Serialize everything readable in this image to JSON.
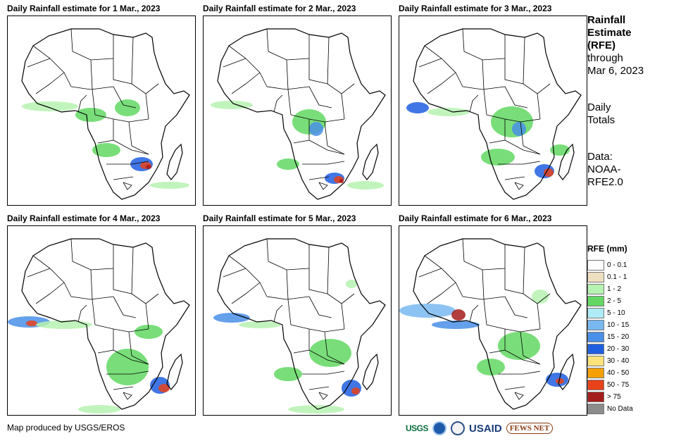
{
  "panels": [
    {
      "title": "Daily Rainfall estimate for 1 Mar., 2023"
    },
    {
      "title": "Daily Rainfall estimate for 2 Mar., 2023"
    },
    {
      "title": "Daily Rainfall estimate for 3 Mar., 2023"
    },
    {
      "title": "Daily Rainfall estimate for 4 Mar., 2023"
    },
    {
      "title": "Daily Rainfall estimate for 5 Mar., 2023"
    },
    {
      "title": "Daily Rainfall estimate for 6 Mar., 2023"
    }
  ],
  "side": {
    "title_line1": "Rainfall",
    "title_line2": "Estimate",
    "title_line3": "(RFE)",
    "through": "through",
    "date": "Mar 6, 2023",
    "totals_line1": "Daily",
    "totals_line2": "Totals",
    "data_line1": "Data:",
    "data_line2": "NOAA-",
    "data_line3": "RFE2.0"
  },
  "legend": {
    "title": "RFE (mm)",
    "items": [
      {
        "label": "0 - 0.1",
        "color": "#ffffff"
      },
      {
        "label": "0.1 - 1",
        "color": "#eedfc0"
      },
      {
        "label": "1 - 2",
        "color": "#b6f2b0"
      },
      {
        "label": "2 - 5",
        "color": "#62d862"
      },
      {
        "label": "5 - 10",
        "color": "#b0ecf6"
      },
      {
        "label": "10 - 15",
        "color": "#79b8f0"
      },
      {
        "label": "15 - 20",
        "color": "#4a8fe8"
      },
      {
        "label": "20 - 30",
        "color": "#1f5ee0"
      },
      {
        "label": "30 - 40",
        "color": "#fbe27a"
      },
      {
        "label": "40 - 50",
        "color": "#f5a000"
      },
      {
        "label": "50 - 75",
        "color": "#e8421a"
      },
      {
        "label": "> 75",
        "color": "#a51c1c"
      },
      {
        "label": "No Data",
        "color": "#8c8c8c"
      }
    ]
  },
  "footer": {
    "credit": "Map produced by USGS/EROS",
    "logos": [
      "USGS",
      "NOAA",
      "DHS",
      "USAID",
      "FEWS NET"
    ]
  }
}
